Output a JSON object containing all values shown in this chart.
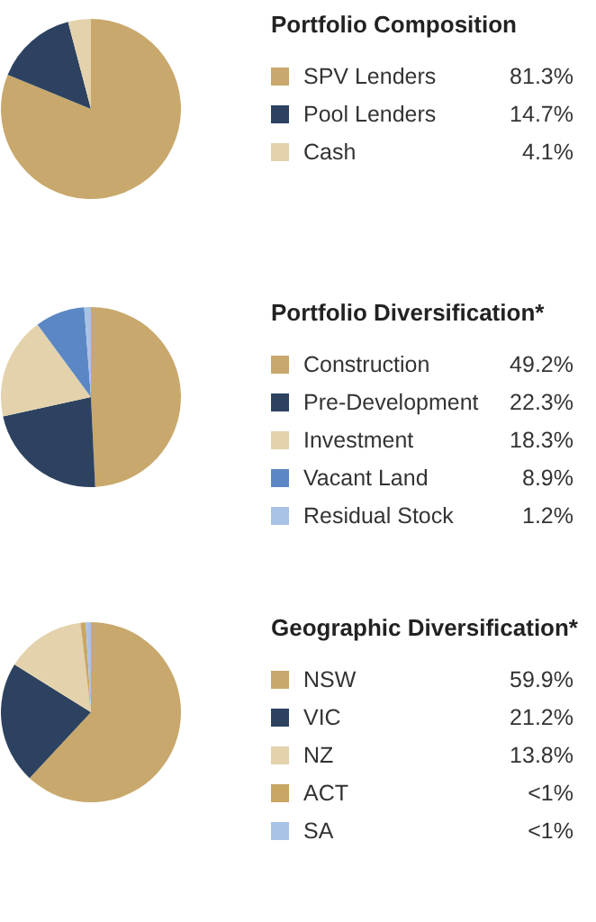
{
  "chart_data": [
    {
      "type": "pie",
      "title": "Portfolio Composition",
      "legend": "right",
      "categories": [
        "SPV Lenders",
        "Pool Lenders",
        "Cash"
      ],
      "values": [
        81.3,
        14.7,
        4.1
      ],
      "value_labels": [
        "81.3%",
        "14.7%",
        "4.1%"
      ],
      "colors": [
        "#c8a86c",
        "#2c4260",
        "#e3d2ac"
      ]
    },
    {
      "type": "pie",
      "title": "Portfolio Diversification*",
      "legend": "right",
      "categories": [
        "Construction",
        "Pre-Development",
        "Investment",
        "Vacant Land",
        "Residual Stock"
      ],
      "values": [
        49.2,
        22.3,
        18.3,
        8.9,
        1.2
      ],
      "value_labels": [
        "49.2%",
        "22.3%",
        "18.3%",
        "8.9%",
        "1.2%"
      ],
      "colors": [
        "#c8a86c",
        "#2c4260",
        "#e3d2ac",
        "#5b88c4",
        "#a9c3e6"
      ]
    },
    {
      "type": "pie",
      "title": "Geographic Diversification*",
      "legend": "right",
      "categories": [
        "NSW",
        "VIC",
        "NZ",
        "ACT",
        "SA"
      ],
      "values": [
        59.9,
        21.2,
        13.8,
        0.9,
        0.9
      ],
      "value_labels": [
        "59.9%",
        "21.2%",
        "13.8%",
        "<1%",
        "<1%"
      ],
      "colors": [
        "#c8a86c",
        "#2c4260",
        "#e3d2ac",
        "#c9a663",
        "#a9c3e6"
      ]
    }
  ]
}
